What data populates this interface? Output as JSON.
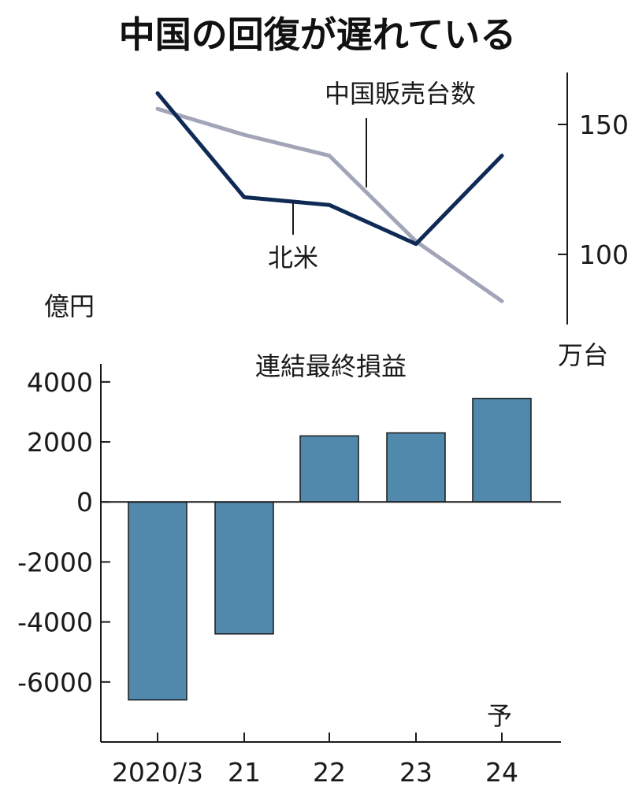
{
  "title": "中国の回復が遅れている",
  "colors": {
    "china_line": "#a2a5b8",
    "na_line": "#0e2a55",
    "bar_fill": "#5189ad",
    "axis": "#1a1a1a"
  },
  "chart_data": [
    {
      "type": "line",
      "unit": "万台",
      "categories": [
        "2020/3",
        "21",
        "22",
        "23",
        "24"
      ],
      "series": [
        {
          "name": "中国販売台数",
          "values": [
            156,
            146,
            138,
            105,
            82
          ]
        },
        {
          "name": "北米",
          "values": [
            162,
            122,
            119,
            104,
            138
          ]
        }
      ],
      "yticks": [
        100,
        150
      ],
      "ylim": [
        73,
        170
      ]
    },
    {
      "type": "bar",
      "title": "連結最終損益",
      "unit": "億円",
      "categories": [
        "2020/3",
        "21",
        "22",
        "23",
        "24"
      ],
      "values": [
        -6600,
        -4400,
        2200,
        2300,
        3450
      ],
      "yticks": [
        4000,
        2000,
        0,
        -2000,
        -4000,
        -6000
      ],
      "ylim": [
        -8000,
        4600
      ],
      "forecast_marker": "予"
    }
  ]
}
